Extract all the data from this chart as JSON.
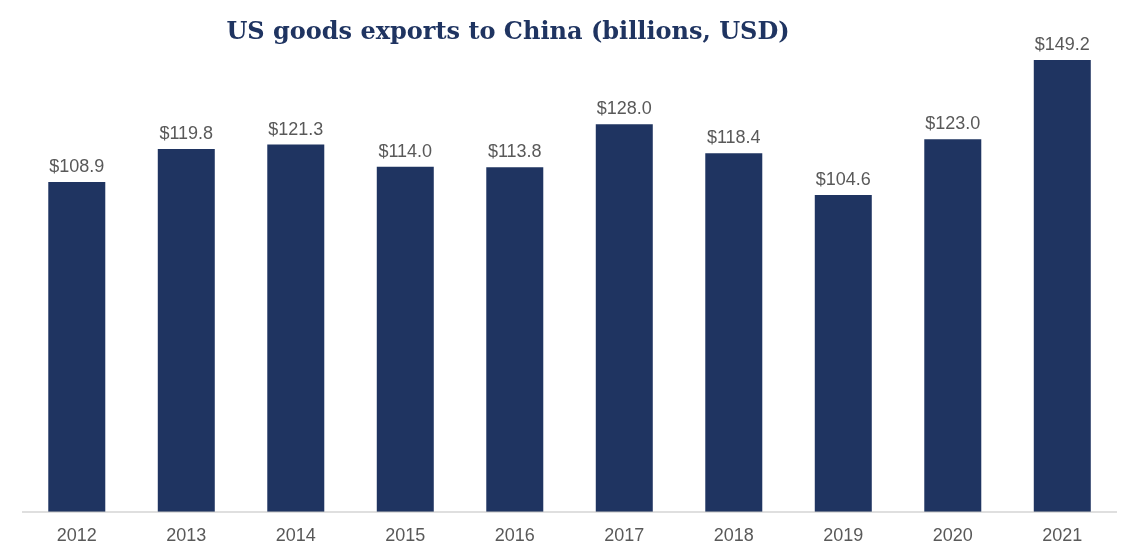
{
  "chart_data": {
    "type": "bar",
    "title": "US goods exports to China (billions, USD)",
    "categories": [
      "2012",
      "2013",
      "2014",
      "2015",
      "2016",
      "2017",
      "2018",
      "2019",
      "2020",
      "2021"
    ],
    "values": [
      108.9,
      119.8,
      121.3,
      114.0,
      113.8,
      128.0,
      118.4,
      104.6,
      123.0,
      149.2
    ],
    "value_labels": [
      "$108.9",
      "$119.8",
      "$121.3",
      "$114.0",
      "$113.8",
      "$128.0",
      "$118.4",
      "$104.6",
      "$123.0",
      "$149.2"
    ],
    "color": "#1f3461",
    "ylim": [
      0,
      149.2
    ],
    "grid": false,
    "legend": false
  }
}
